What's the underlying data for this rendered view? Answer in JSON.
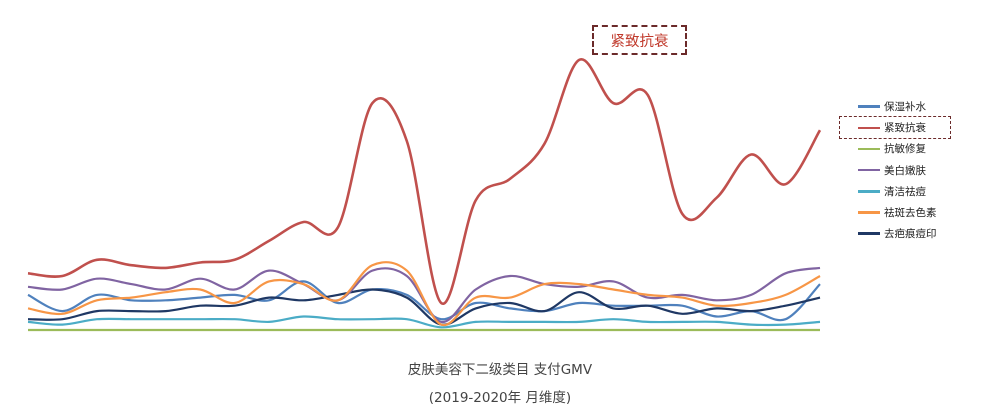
{
  "chart_data": {
    "type": "line",
    "title": "皮肤美容下二级类目 支付GMV",
    "subtitle": "(2019-2020年 月维度)",
    "xlabel": "",
    "ylabel": "",
    "ylim": [
      0,
      100
    ],
    "grid": false,
    "legend_position": "right",
    "x": [
      1,
      2,
      3,
      4,
      5,
      6,
      7,
      8,
      9,
      10,
      11,
      12,
      13,
      14,
      15,
      16,
      17,
      18,
      19,
      20,
      21,
      22,
      23,
      24
    ],
    "series": [
      {
        "name": "保湿补水",
        "color": "#4f81bd",
        "values": [
          13,
          7,
          13,
          11,
          11,
          12,
          13,
          11,
          18,
          10,
          15,
          13,
          4,
          10,
          8,
          7,
          10,
          9,
          9,
          9,
          5,
          7,
          4,
          17
        ]
      },
      {
        "name": "紧致抗衰",
        "color": "#c0504d",
        "values": [
          21,
          20,
          26,
          24,
          23,
          25,
          26,
          33,
          40,
          38,
          84,
          70,
          10,
          48,
          56,
          69,
          100,
          84,
          87,
          43,
          49,
          65,
          54,
          74
        ]
      },
      {
        "name": "抗敏修复",
        "color": "#9bbb59",
        "values": [
          0,
          0,
          0,
          0,
          0,
          0,
          0,
          0,
          0,
          0,
          0,
          0,
          0,
          0,
          0,
          0,
          0,
          0,
          0,
          0,
          0,
          0,
          0,
          0
        ]
      },
      {
        "name": "美白嫩肤",
        "color": "#8064a2",
        "values": [
          16,
          15,
          19,
          17,
          15,
          19,
          15,
          22,
          17,
          11,
          22,
          20,
          3,
          15,
          20,
          17,
          16,
          18,
          12,
          13,
          11,
          13,
          21,
          23
        ]
      },
      {
        "name": "清洁祛痘",
        "color": "#4bacc6",
        "values": [
          3,
          2,
          4,
          4,
          4,
          4,
          4,
          3,
          5,
          4,
          4,
          4,
          1,
          3,
          3,
          3,
          3,
          4,
          3,
          3,
          3,
          2,
          2,
          3
        ]
      },
      {
        "name": "祛斑去色素",
        "color": "#f79646",
        "values": [
          8,
          6,
          11,
          12,
          14,
          15,
          10,
          18,
          17,
          11,
          24,
          22,
          2,
          12,
          12,
          17,
          17,
          15,
          13,
          12,
          9,
          10,
          13,
          20
        ]
      },
      {
        "name": "去疤痕痘印",
        "color": "#1f3864",
        "values": [
          4,
          4,
          7,
          7,
          7,
          9,
          9,
          12,
          11,
          13,
          15,
          12,
          2,
          8,
          10,
          7,
          14,
          8,
          9,
          6,
          8,
          7,
          9,
          12
        ]
      }
    ],
    "annotations": [
      {
        "text": "紧致抗衰",
        "series": "紧致抗衰"
      }
    ],
    "highlighted_legend": "紧致抗衰"
  }
}
